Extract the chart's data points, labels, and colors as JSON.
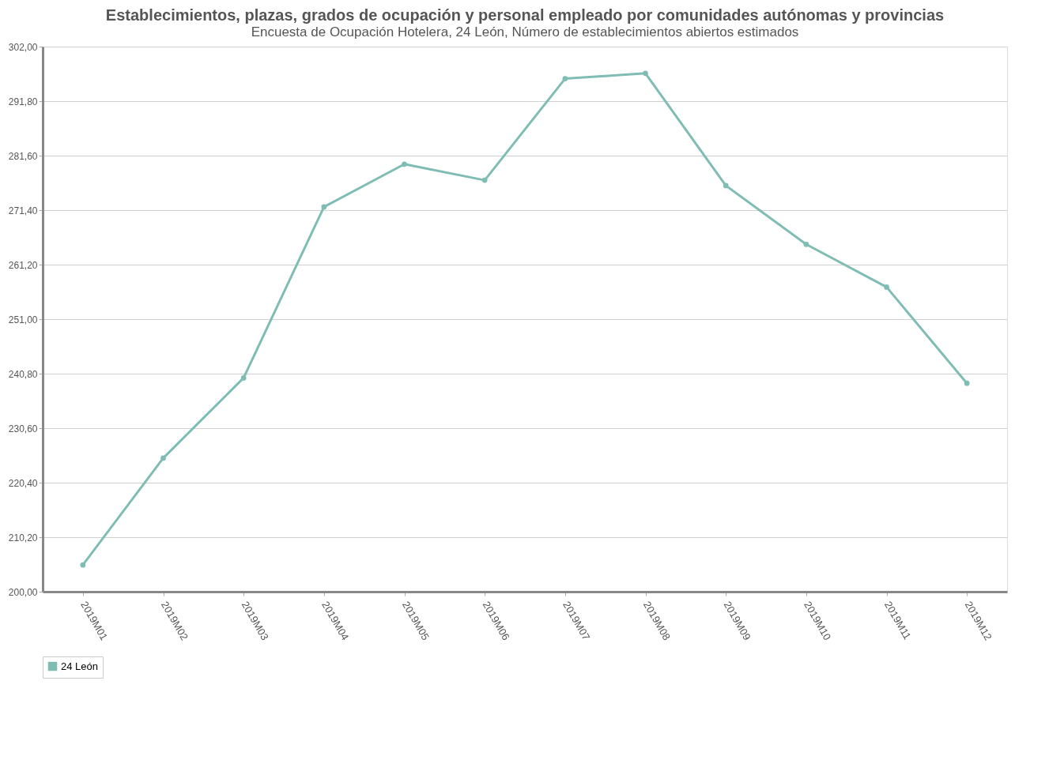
{
  "chart_data": {
    "type": "line",
    "title": "Establecimientos, plazas, grados de ocupación y personal empleado por comunidades autónomas y provincias",
    "subtitle": "Encuesta de Ocupación Hotelera, 24 León, Número de establecimientos abiertos estimados",
    "categories": [
      "2019M01",
      "2019M02",
      "2019M03",
      "2019M04",
      "2019M05",
      "2019M06",
      "2019M07",
      "2019M08",
      "2019M09",
      "2019M10",
      "2019M11",
      "2019M12"
    ],
    "series": [
      {
        "name": "24 León",
        "color": "#7fbdb4",
        "values": [
          205,
          225,
          240,
          272,
          280,
          277,
          296,
          297,
          276,
          265,
          257,
          239
        ]
      }
    ],
    "ylim": [
      200,
      302
    ],
    "yticks": [
      {
        "value": 200,
        "label": "200,00"
      },
      {
        "value": 210.2,
        "label": "210,20"
      },
      {
        "value": 220.4,
        "label": "220,40"
      },
      {
        "value": 230.6,
        "label": "230,60"
      },
      {
        "value": 240.8,
        "label": "240,80"
      },
      {
        "value": 251,
        "label": "251,00"
      },
      {
        "value": 261.2,
        "label": "261,20"
      },
      {
        "value": 271.4,
        "label": "271,40"
      },
      {
        "value": 281.6,
        "label": "281,60"
      },
      {
        "value": 291.8,
        "label": "291,80"
      },
      {
        "value": 302,
        "label": "302,00"
      }
    ],
    "grid": "y",
    "legend": "bottom",
    "marker": "circle",
    "line_style": "solid"
  }
}
